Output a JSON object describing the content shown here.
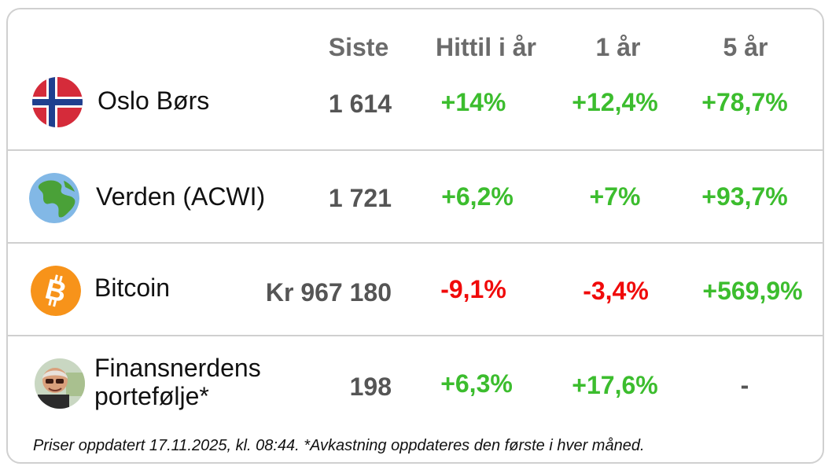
{
  "headers": {
    "last": "Siste",
    "ytd": "Hittil i år",
    "one_year": "1 år",
    "five_years": "5 år"
  },
  "rows": [
    {
      "name": "Oslo Børs",
      "icon": "norway-flag-icon",
      "last": "1 614",
      "ytd": "+14%",
      "one_year": "+12,4%",
      "five_years": "+78,7%"
    },
    {
      "name": "Verden (ACWI)",
      "icon": "globe-icon",
      "last": "1 721",
      "ytd": "+6,2%",
      "one_year": "+7%",
      "five_years": "+93,7%"
    },
    {
      "name": "Bitcoin",
      "icon": "bitcoin-icon",
      "last": "Kr 967 180",
      "ytd": "-9,1%",
      "one_year": "-3,4%",
      "five_years": "+569,9%"
    },
    {
      "name_line1": "Finansnerdens",
      "name_line2": "portefølje*",
      "icon": "avatar-icon",
      "last": "198",
      "ytd": "+6,3%",
      "one_year": "+17,6%",
      "five_years": "-"
    }
  ],
  "colors": {
    "positive": "#3cbd2e",
    "negative": "#f00a0a",
    "header": "#6b6b6b",
    "value": "#555555"
  },
  "footer": "Priser oppdatert 17.11.2025, kl. 08:44. *Avkastning oppdateres den første i hver måned."
}
